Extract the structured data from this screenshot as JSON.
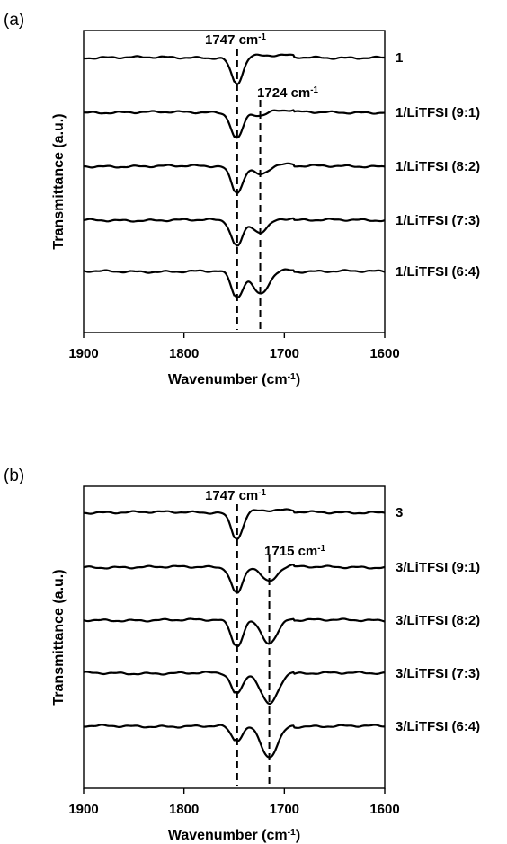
{
  "chart_data": [
    {
      "type": "line",
      "panel": "(a)",
      "xlabel": "Wavenumber (cm-1)",
      "ylabel": "Transmittance (a.u.)",
      "xlim": [
        1900,
        1600
      ],
      "x_reversed": true,
      "xticks": [
        1900,
        1800,
        1700,
        1600
      ],
      "peaks": [
        {
          "label": "1747 cm-1",
          "x": 1747
        },
        {
          "label": "1724 cm-1",
          "x": 1724
        }
      ],
      "series": [
        {
          "name": "1",
          "band_depths": [
            0.85,
            0.0
          ]
        },
        {
          "name": "1/LiTFSI (9:1)",
          "band_depths": [
            0.85,
            0.15
          ]
        },
        {
          "name": "1/LiTFSI (8:2)",
          "band_depths": [
            0.85,
            0.3
          ]
        },
        {
          "name": "1/LiTFSI (7:3)",
          "band_depths": [
            0.85,
            0.42
          ]
        },
        {
          "name": "1/LiTFSI (6:4)",
          "band_depths": [
            0.85,
            0.75
          ]
        }
      ]
    },
    {
      "type": "line",
      "panel": "(b)",
      "xlabel": "Wavenumber (cm-1)",
      "ylabel": "Transmittance (a.u.)",
      "xlim": [
        1900,
        1600
      ],
      "x_reversed": true,
      "xticks": [
        1900,
        1800,
        1700,
        1600
      ],
      "peaks": [
        {
          "label": "1747 cm-1",
          "x": 1747
        },
        {
          "label": "1715 cm-1",
          "x": 1715
        }
      ],
      "series": [
        {
          "name": "3",
          "band_depths": [
            0.85,
            0.0
          ]
        },
        {
          "name": "3/LiTFSI (9:1)",
          "band_depths": [
            0.85,
            0.5
          ]
        },
        {
          "name": "3/LiTFSI (8:2)",
          "band_depths": [
            0.85,
            0.75
          ]
        },
        {
          "name": "3/LiTFSI (7:3)",
          "band_depths": [
            0.7,
            1.0
          ]
        },
        {
          "name": "3/LiTFSI (6:4)",
          "band_depths": [
            0.5,
            1.0
          ]
        }
      ]
    }
  ]
}
